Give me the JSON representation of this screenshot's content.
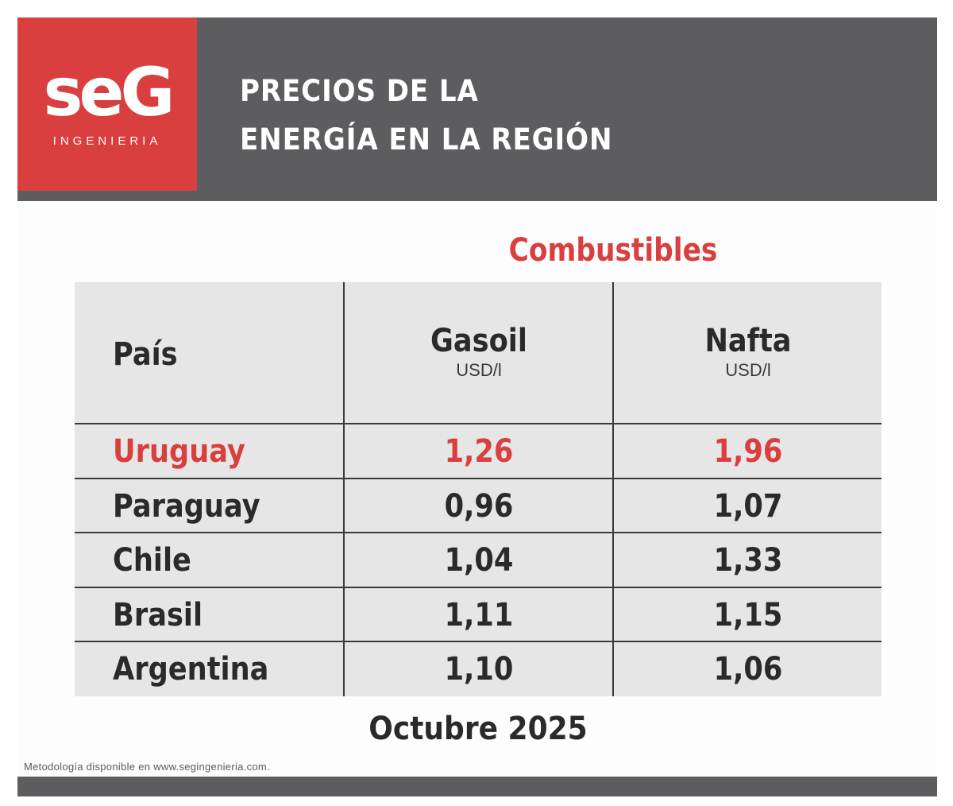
{
  "brand": {
    "logo_mark": "seG",
    "logo_subtitle": "INGENIERIA"
  },
  "header": {
    "title_line1": "PRECIOS DE LA",
    "title_line2": "ENERGÍA EN LA REGIÓN"
  },
  "colors": {
    "accent": "#d93f3e",
    "header_gray": "#5d5d5f",
    "table_bg": "#e6e6e6",
    "text": "#2a2a2a"
  },
  "chart_data": {
    "type": "table",
    "title": "Combustibles",
    "columns": [
      {
        "name": "País",
        "unit": ""
      },
      {
        "name": "Gasoil",
        "unit": "USD/l"
      },
      {
        "name": "Nafta",
        "unit": "USD/l"
      }
    ],
    "rows": [
      {
        "country": "Uruguay",
        "gasoil": "1,26",
        "nafta": "1,96",
        "highlight": true
      },
      {
        "country": "Paraguay",
        "gasoil": "0,96",
        "nafta": "1,07",
        "highlight": false
      },
      {
        "country": "Chile",
        "gasoil": "1,04",
        "nafta": "1,33",
        "highlight": false
      },
      {
        "country": "Brasil",
        "gasoil": "1,11",
        "nafta": "1,15",
        "highlight": false
      },
      {
        "country": "Argentina",
        "gasoil": "1,10",
        "nafta": "1,06",
        "highlight": false
      }
    ],
    "period": "Octubre 2025"
  },
  "footer": {
    "note": "Metodología disponible en www.segingenieria.com."
  }
}
